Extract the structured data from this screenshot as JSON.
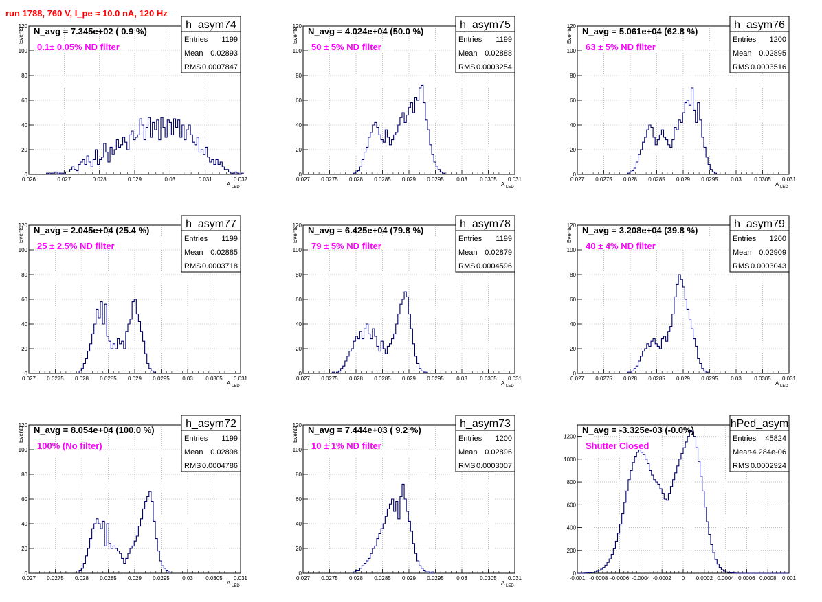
{
  "header": "run 1788,   760 V, I_pe ≈ 10.0 nA, 120 Hz",
  "colors": {
    "hist_line": "#00006e",
    "grid": "#9a9a9a",
    "header": "#ff0000",
    "filter_text": "#ff00ff"
  },
  "chart_data": [
    {
      "type": "histogram",
      "title": "h_asym74",
      "navg": "N_avg = 7.345e+02 ( 0.9 %)",
      "filter": "0.1± 0.05% ND filter",
      "stats": {
        "entries": "1199",
        "mean": "0.02893",
        "rms": "0.0007847"
      },
      "xlabel": "A",
      "xlabel_sub": "LED",
      "ylabel": "Events",
      "xlim": [
        0.026,
        0.032
      ],
      "ylim": [
        0,
        120
      ],
      "xticks": [
        "0.026",
        "0.027",
        "0.028",
        "0.029",
        "0.03",
        "0.031",
        "0.032"
      ],
      "xtick_values": [
        0.026,
        0.027,
        0.028,
        0.029,
        0.03,
        0.031,
        0.032
      ],
      "yticks": [
        0,
        20,
        40,
        60,
        80,
        100,
        120
      ],
      "bin_start": 0.0265,
      "bin_width": 6e-05,
      "counts": [
        1,
        0,
        1,
        1,
        2,
        0,
        1,
        1,
        0,
        2,
        2,
        4,
        6,
        4,
        3,
        8,
        10,
        12,
        8,
        15,
        10,
        6,
        12,
        20,
        8,
        12,
        14,
        25,
        18,
        10,
        22,
        16,
        20,
        28,
        22,
        24,
        30,
        26,
        20,
        32,
        35,
        28,
        30,
        32,
        45,
        40,
        28,
        38,
        46,
        30,
        42,
        36,
        44,
        28,
        46,
        38,
        30,
        44,
        42,
        32,
        45,
        38,
        44,
        30,
        40,
        28,
        36,
        40,
        32,
        26,
        24,
        30,
        18,
        20,
        16,
        22,
        14,
        10,
        12,
        8,
        12,
        8,
        10,
        6,
        4,
        4,
        2,
        1,
        0,
        2,
        1,
        0,
        1
      ]
    },
    {
      "type": "histogram",
      "title": "h_asym75",
      "navg": "N_avg = 4.024e+04 (50.0 %)",
      "filter": "50 ± 5% ND filter",
      "stats": {
        "entries": "1199",
        "mean": "0.02888",
        "rms": "0.0003254"
      },
      "xlabel": "A",
      "xlabel_sub": "LED",
      "ylabel": "Events",
      "xlim": [
        0.027,
        0.031
      ],
      "ylim": [
        0,
        120
      ],
      "xticks": [
        "0.027",
        "0.0275",
        "0.028",
        "0.0285",
        "0.029",
        "0.0295",
        "0.03",
        "0.0305",
        "0.031"
      ],
      "xtick_values": [
        0.027,
        0.0275,
        0.028,
        0.0285,
        0.029,
        0.0295,
        0.03,
        0.0305,
        0.031
      ],
      "yticks": [
        0,
        20,
        40,
        60,
        80,
        100,
        120
      ],
      "bin_start": 0.02795,
      "bin_width": 4e-05,
      "counts": [
        1,
        2,
        3,
        6,
        12,
        18,
        22,
        30,
        34,
        40,
        42,
        38,
        32,
        28,
        26,
        36,
        30,
        24,
        28,
        32,
        34,
        40,
        46,
        50,
        42,
        48,
        54,
        58,
        50,
        62,
        60,
        70,
        72,
        58,
        44,
        36,
        24,
        16,
        10,
        6,
        4,
        2,
        1
      ]
    },
    {
      "type": "histogram",
      "title": "h_asym76",
      "navg": "N_avg = 5.061e+04 (62.8 %)",
      "filter": "63 ± 5% ND filter",
      "stats": {
        "entries": "1200",
        "mean": "0.02895",
        "rms": "0.0003516"
      },
      "xlabel": "A",
      "xlabel_sub": "LED",
      "ylabel": "Events",
      "xlim": [
        0.027,
        0.031
      ],
      "ylim": [
        0,
        120
      ],
      "xticks": [
        "0.027",
        "0.0275",
        "0.028",
        "0.0285",
        "0.029",
        "0.0295",
        "0.03",
        "0.0305",
        "0.031"
      ],
      "xtick_values": [
        0.027,
        0.0275,
        0.028,
        0.0285,
        0.029,
        0.0295,
        0.03,
        0.0305,
        0.031
      ],
      "yticks": [
        0,
        20,
        40,
        60,
        80,
        100,
        120
      ],
      "bin_start": 0.02795,
      "bin_width": 4e-05,
      "counts": [
        1,
        2,
        3,
        5,
        10,
        16,
        20,
        26,
        30,
        36,
        40,
        38,
        30,
        24,
        28,
        32,
        36,
        30,
        28,
        24,
        22,
        28,
        38,
        36,
        44,
        42,
        50,
        58,
        60,
        56,
        70,
        52,
        42,
        58,
        44,
        30,
        22,
        14,
        8,
        4,
        2,
        1
      ]
    },
    {
      "type": "histogram",
      "title": "h_asym77",
      "navg": "N_avg = 2.045e+04 (25.4 %)",
      "filter": "25 ± 2.5% ND filter",
      "stats": {
        "entries": "1199",
        "mean": "0.02885",
        "rms": "0.0003718"
      },
      "xlabel": "A",
      "xlabel_sub": "LED",
      "ylabel": "Events",
      "xlim": [
        0.027,
        0.031
      ],
      "ylim": [
        0,
        120
      ],
      "xticks": [
        "0.027",
        "0.0275",
        "0.028",
        "0.0285",
        "0.029",
        "0.0295",
        "0.03",
        "0.0305",
        "0.031"
      ],
      "xtick_values": [
        0.027,
        0.0275,
        0.028,
        0.0285,
        0.029,
        0.0295,
        0.03,
        0.0305,
        0.031
      ],
      "yticks": [
        0,
        20,
        40,
        60,
        80,
        100,
        120
      ],
      "bin_start": 0.02795,
      "bin_width": 4e-05,
      "counts": [
        2,
        4,
        8,
        12,
        18,
        24,
        32,
        40,
        52,
        45,
        58,
        40,
        56,
        30,
        26,
        20,
        24,
        20,
        28,
        24,
        26,
        20,
        34,
        40,
        44,
        58,
        60,
        48,
        42,
        34,
        26,
        16,
        8,
        4,
        2,
        1
      ]
    },
    {
      "type": "histogram",
      "title": "h_asym78",
      "navg": "N_avg = 6.425e+04 (79.8 %)",
      "filter": "79 ± 5% ND filter",
      "stats": {
        "entries": "1199",
        "mean": "0.02879",
        "rms": "0.0004596"
      },
      "xlabel": "A",
      "xlabel_sub": "LED",
      "ylabel": "Events",
      "xlim": [
        0.027,
        0.031
      ],
      "ylim": [
        0,
        120
      ],
      "xticks": [
        "0.027",
        "0.0275",
        "0.028",
        "0.0285",
        "0.029",
        "0.0295",
        "0.03",
        "0.0305",
        "0.031"
      ],
      "xtick_values": [
        0.027,
        0.0275,
        0.028,
        0.0285,
        0.029,
        0.0295,
        0.03,
        0.0305,
        0.031
      ],
      "yticks": [
        0,
        20,
        40,
        60,
        80,
        100,
        120
      ],
      "bin_start": 0.02755,
      "bin_width": 4e-05,
      "counts": [
        1,
        0,
        1,
        2,
        4,
        6,
        10,
        14,
        18,
        20,
        26,
        30,
        28,
        34,
        28,
        36,
        40,
        32,
        28,
        36,
        30,
        22,
        18,
        26,
        20,
        16,
        22,
        24,
        28,
        32,
        40,
        48,
        56,
        60,
        66,
        62,
        48,
        36,
        24,
        14,
        8,
        4,
        2,
        1,
        1
      ]
    },
    {
      "type": "histogram",
      "title": "h_asym79",
      "navg": "N_avg = 3.208e+04 (39.8 %)",
      "filter": "40 ± 4% ND filter",
      "stats": {
        "entries": "1200",
        "mean": "0.02909",
        "rms": "0.0003043"
      },
      "xlabel": "A",
      "xlabel_sub": "LED",
      "ylabel": "Events",
      "xlim": [
        0.027,
        0.031
      ],
      "ylim": [
        0,
        120
      ],
      "xticks": [
        "0.027",
        "0.0275",
        "0.028",
        "0.0285",
        "0.029",
        "0.0295",
        "0.03",
        "0.0305",
        "0.031"
      ],
      "xtick_values": [
        0.027,
        0.0275,
        0.028,
        0.0285,
        0.029,
        0.0295,
        0.03,
        0.0305,
        0.031
      ],
      "yticks": [
        0,
        20,
        40,
        60,
        80,
        100,
        120
      ],
      "bin_start": 0.02795,
      "bin_width": 4e-05,
      "counts": [
        1,
        1,
        2,
        4,
        6,
        10,
        14,
        18,
        20,
        24,
        22,
        26,
        28,
        24,
        22,
        20,
        28,
        30,
        26,
        34,
        38,
        48,
        62,
        72,
        80,
        76,
        70,
        60,
        52,
        44,
        36,
        28,
        22,
        12,
        8,
        4,
        2,
        1
      ]
    },
    {
      "type": "histogram",
      "title": "h_asym72",
      "navg": "N_avg = 8.054e+04 (100.0 %)",
      "filter": "100% (No filter)",
      "stats": {
        "entries": "1199",
        "mean": "0.02898",
        "rms": "0.0004786"
      },
      "xlabel": "A",
      "xlabel_sub": "LED",
      "ylabel": "Events",
      "xlim": [
        0.027,
        0.031
      ],
      "ylim": [
        0,
        120
      ],
      "xticks": [
        "0.027",
        "0.0275",
        "0.028",
        "0.0285",
        "0.029",
        "0.0295",
        "0.03",
        "0.0305",
        "0.031"
      ],
      "xtick_values": [
        0.027,
        0.0275,
        0.028,
        0.0285,
        0.029,
        0.0295,
        0.03,
        0.0305,
        0.031
      ],
      "yticks": [
        0,
        20,
        40,
        60,
        80,
        100,
        120
      ],
      "bin_start": 0.02795,
      "bin_width": 4e-05,
      "counts": [
        2,
        4,
        8,
        14,
        20,
        28,
        36,
        40,
        44,
        40,
        36,
        42,
        22,
        40,
        24,
        20,
        22,
        20,
        18,
        16,
        12,
        8,
        12,
        16,
        20,
        22,
        26,
        30,
        38,
        44,
        52,
        58,
        62,
        66,
        58,
        42,
        28,
        18,
        10,
        6,
        4,
        2,
        1
      ]
    },
    {
      "type": "histogram",
      "title": "h_asym73",
      "navg": "N_avg = 7.444e+03 ( 9.2 %)",
      "filter": "10 ± 1% ND filter",
      "stats": {
        "entries": "1200",
        "mean": "0.02896",
        "rms": "0.0003007"
      },
      "xlabel": "A",
      "xlabel_sub": "LED",
      "ylabel": "Events",
      "xlim": [
        0.027,
        0.031
      ],
      "ylim": [
        0,
        120
      ],
      "xticks": [
        "0.027",
        "0.0275",
        "0.028",
        "0.0285",
        "0.029",
        "0.0295",
        "0.03",
        "0.0305",
        "0.031"
      ],
      "xtick_values": [
        0.027,
        0.0275,
        0.028,
        0.0285,
        0.029,
        0.0295,
        0.03,
        0.0305,
        0.031
      ],
      "yticks": [
        0,
        20,
        40,
        60,
        80,
        100,
        120
      ],
      "bin_start": 0.02795,
      "bin_width": 4e-05,
      "counts": [
        1,
        2,
        2,
        4,
        6,
        8,
        10,
        12,
        16,
        20,
        22,
        28,
        32,
        36,
        40,
        46,
        52,
        56,
        60,
        50,
        58,
        44,
        62,
        72,
        60,
        50,
        42,
        34,
        24,
        16,
        10,
        6,
        4,
        2,
        1,
        1,
        0,
        1
      ]
    },
    {
      "type": "histogram",
      "title": "hPed_asym",
      "navg": "N_avg = -3.325e-03 (-0.0%)",
      "filter": "Shutter Closed",
      "stats": {
        "entries": "45824",
        "mean": "-4.284e-06",
        "rms": "0.0002924"
      },
      "xlabel": "",
      "xlabel_sub": "",
      "ylabel": "",
      "xlim": [
        -0.001,
        0.001
      ],
      "ylim": [
        0,
        1300
      ],
      "xticks": [
        "-0.001",
        "-0.0008",
        "-0.0006",
        "-0.0004",
        "-0.0002",
        "0",
        "0.0002",
        "0.0004",
        "0.0006",
        "0.0008",
        "0.001"
      ],
      "xtick_values": [
        -0.001,
        -0.0008,
        -0.0006,
        -0.0004,
        -0.0002,
        0,
        0.0002,
        0.0004,
        0.0006,
        0.0008,
        0.001
      ],
      "yticks": [
        0,
        200,
        400,
        600,
        800,
        1000,
        1200
      ],
      "bin_start": -0.001,
      "bin_width": 2e-05,
      "counts": [
        0,
        0,
        0,
        1,
        2,
        3,
        5,
        8,
        12,
        18,
        26,
        36,
        50,
        70,
        95,
        125,
        165,
        215,
        280,
        350,
        430,
        520,
        620,
        720,
        820,
        900,
        970,
        1020,
        1060,
        1080,
        1060,
        1040,
        1000,
        960,
        900,
        860,
        820,
        800,
        780,
        740,
        700,
        650,
        640,
        700,
        760,
        820,
        880,
        940,
        1000,
        1050,
        1100,
        1150,
        1200,
        1250,
        1240,
        1200,
        1100,
        980,
        850,
        720,
        580,
        450,
        340,
        250,
        180,
        120,
        80,
        50,
        30,
        18,
        10,
        6,
        3,
        2,
        1,
        0,
        0,
        0,
        0,
        0,
        0,
        0,
        0,
        0,
        0,
        0,
        0,
        0,
        0,
        0,
        0,
        0,
        0,
        0,
        0,
        0,
        0,
        0,
        0,
        0
      ]
    }
  ]
}
